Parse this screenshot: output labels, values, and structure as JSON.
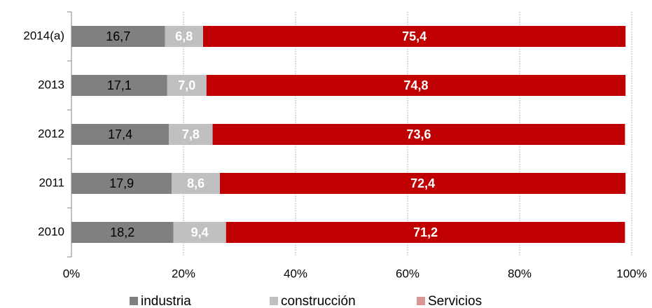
{
  "chart_data": {
    "type": "stacked_bar_horizontal",
    "categories": [
      "2014(a)",
      "2013",
      "2012",
      "2011",
      "2010"
    ],
    "series": [
      {
        "name": "industria",
        "color": "#808080",
        "values": [
          16.7,
          17.1,
          17.4,
          17.9,
          18.2
        ],
        "value_labels": [
          "16,7",
          "17,1",
          "17,4",
          "17,9",
          "18,2"
        ]
      },
      {
        "name": "construcción",
        "color": "#c0c0c0",
        "values": [
          6.8,
          7.0,
          7.8,
          8.6,
          9.4
        ],
        "value_labels": [
          "6,8",
          "7,0",
          "7,8",
          "8,6",
          "9,4"
        ]
      },
      {
        "name": "Servicios",
        "color": "#c00000",
        "legend_color": "#d99694",
        "values": [
          75.4,
          74.8,
          73.6,
          72.4,
          71.2
        ],
        "value_labels": [
          "75,4",
          "74,8",
          "73,6",
          "72,4",
          "71,2"
        ]
      }
    ],
    "xlim": [
      0,
      100
    ],
    "xticks": [
      {
        "value": 0,
        "label": "0%"
      },
      {
        "value": 20,
        "label": "20%"
      },
      {
        "value": 40,
        "label": "40%"
      },
      {
        "value": 60,
        "label": "60%"
      },
      {
        "value": 80,
        "label": "80%"
      },
      {
        "value": 100,
        "label": "100%"
      }
    ],
    "grid": true,
    "legend": "bottom"
  }
}
